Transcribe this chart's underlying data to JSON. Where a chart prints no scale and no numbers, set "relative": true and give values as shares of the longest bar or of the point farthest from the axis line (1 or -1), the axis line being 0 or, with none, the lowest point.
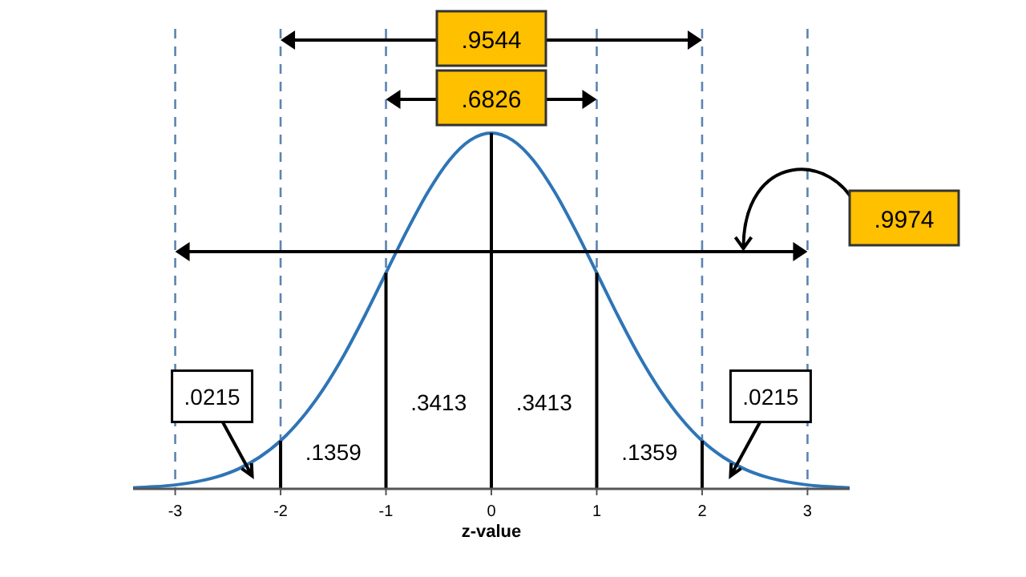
{
  "chart_data": {
    "type": "line",
    "relative": true,
    "xlabel": "z-value",
    "x": [
      -3.4,
      -3.2,
      -3.0,
      -2.8,
      -2.6,
      -2.4,
      -2.2,
      -2.0,
      -1.8,
      -1.6,
      -1.4,
      -1.2,
      -1.0,
      -0.8,
      -0.6,
      -0.4,
      -0.2,
      0,
      0.2,
      0.4,
      0.6,
      0.8,
      1.0,
      1.2,
      1.4,
      1.6,
      1.8,
      2.0,
      2.2,
      2.4,
      2.6,
      2.8,
      3.0,
      3.2,
      3.4
    ],
    "series": [
      {
        "color": "#2e75b6",
        "values": [
          0.003,
          0.006,
          0.011,
          0.02,
          0.034,
          0.056,
          0.089,
          0.135,
          0.198,
          0.278,
          0.375,
          0.487,
          0.607,
          0.726,
          0.835,
          0.923,
          0.98,
          1,
          0.98,
          0.923,
          0.835,
          0.726,
          0.607,
          0.487,
          0.375,
          0.278,
          0.198,
          0.135,
          0.089,
          0.056,
          0.034,
          0.02,
          0.011,
          0.006,
          0.003
        ]
      },
      {
        "color": "#000000",
        "x": [
          -2,
          -2
        ],
        "values": [
          0,
          0.135
        ]
      },
      {
        "color": "#000000",
        "x": [
          -1,
          -1
        ],
        "values": [
          0,
          0.607
        ]
      },
      {
        "color": "#000000",
        "x": [
          0,
          0
        ],
        "values": [
          0,
          1
        ]
      },
      {
        "color": "#000000",
        "x": [
          1,
          1
        ],
        "values": [
          0,
          0.607
        ]
      },
      {
        "color": "#000000",
        "x": [
          2,
          2
        ],
        "values": [
          0,
          0.135
        ]
      }
    ],
    "xlim": [
      -3.4,
      3.4
    ],
    "xticks": [
      -3,
      -2,
      -1,
      0,
      1,
      2,
      3
    ],
    "grid": false,
    "ref_lines": [
      {
        "axis": "x",
        "value": -3,
        "color": "#5b84b1",
        "line_style": "dashed"
      },
      {
        "axis": "x",
        "value": -2,
        "color": "#5b84b1",
        "line_style": "dashed"
      },
      {
        "axis": "x",
        "value": -1,
        "color": "#5b84b1",
        "line_style": "dashed"
      },
      {
        "axis": "x",
        "value": 1,
        "color": "#5b84b1",
        "line_style": "dashed"
      },
      {
        "axis": "x",
        "value": 2,
        "color": "#5b84b1",
        "line_style": "dashed"
      },
      {
        "axis": "x",
        "value": 3,
        "color": "#5b84b1",
        "line_style": "dashed"
      }
    ],
    "annotations": [
      ".9544",
      ".6826",
      ".9974",
      ".0215",
      ".1359",
      ".3413",
      ".3413",
      ".1359",
      ".0215"
    ]
  }
}
